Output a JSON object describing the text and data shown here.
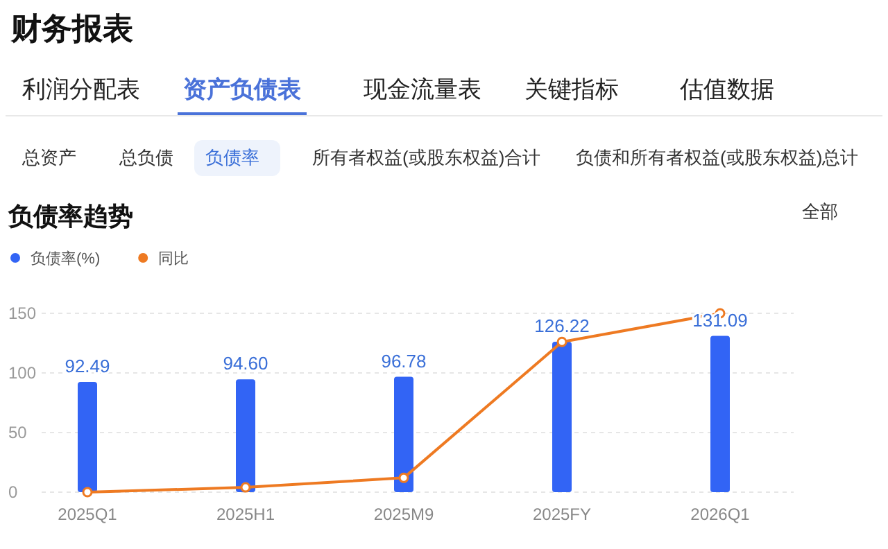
{
  "chart_data": {
    "type": "bar",
    "title": "负债率趋势",
    "annotations": [
      "财务报表",
      "利润分配表",
      "资产负债表",
      "现金流量表",
      "关键指标",
      "估值数据",
      "总资产",
      "总负债",
      "负债率",
      "所有者权益(或股东权益)合计",
      "负债和所有者权益(或股东权益)总计",
      "全部"
    ],
    "categories": [
      "2025Q1",
      "2025H1",
      "2025M9",
      "2025FY",
      "2026Q1"
    ],
    "series": [
      {
        "name": "负债率(%)",
        "color": "#3264f5",
        "values": [
          92.49,
          94.6,
          96.78,
          126.22,
          131.09
        ],
        "value_labels": [
          "92.49",
          "94.60",
          "96.78",
          "126.22",
          "131.09"
        ]
      },
      {
        "name": "同比",
        "type": "line",
        "color": "#ee7a22",
        "values": [
          0,
          4,
          12,
          126,
          150
        ],
        "marker": "circle"
      }
    ],
    "ylim": [
      0,
      150
    ],
    "yticks": [
      0,
      50,
      100,
      150
    ],
    "grid": "y",
    "legend": "top left"
  }
}
